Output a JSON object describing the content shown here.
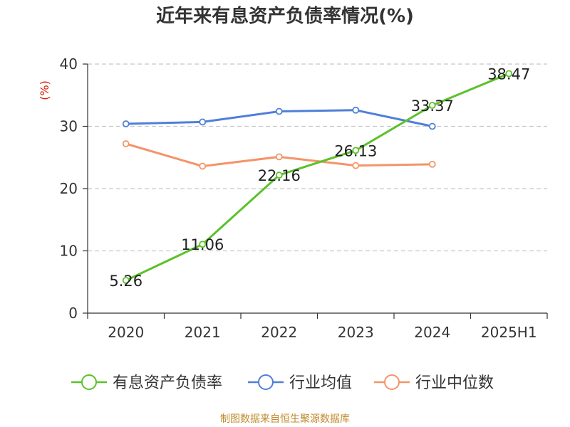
{
  "chart_data": {
    "type": "line",
    "title": "近年来有息资产负债率情况(%)",
    "ylabel": "(%)",
    "xlabel": "",
    "categories": [
      "2020",
      "2021",
      "2022",
      "2023",
      "2024",
      "2025H1"
    ],
    "ylim": [
      0,
      40
    ],
    "yticks": [
      0,
      10,
      20,
      30,
      40
    ],
    "grid": true,
    "legend_position": "bottom",
    "series": [
      {
        "name": "有息资产负债率",
        "color": "#5cc12a",
        "values": [
          5.26,
          11.06,
          22.16,
          26.13,
          33.37,
          38.47
        ],
        "labels": [
          "5.26",
          "11.06",
          "22.16",
          "26.13",
          "33.37",
          "38.47"
        ]
      },
      {
        "name": "行业均值",
        "color": "#4f7fd8",
        "values": [
          30.4,
          30.7,
          32.4,
          32.6,
          30.0,
          null
        ]
      },
      {
        "name": "行业中位数",
        "color": "#f49469",
        "values": [
          27.2,
          23.6,
          25.1,
          23.7,
          23.9,
          null
        ]
      }
    ]
  },
  "source_note": "制图数据来自恒生聚源数据库"
}
